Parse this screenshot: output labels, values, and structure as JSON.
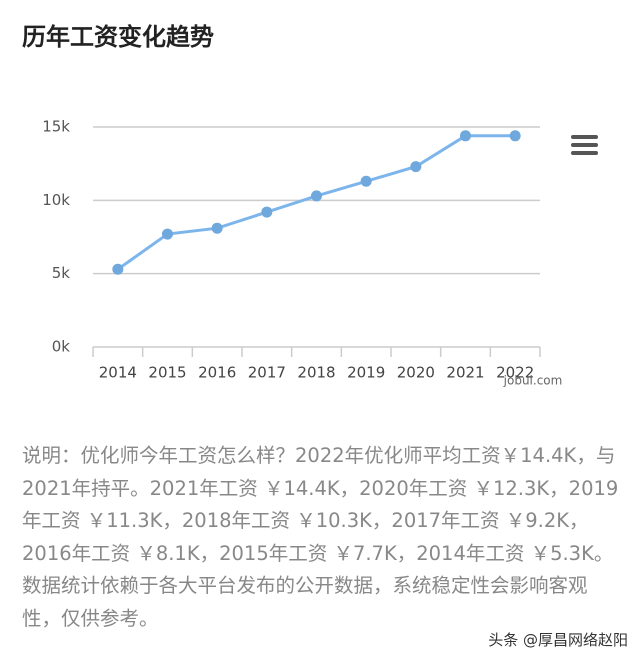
{
  "chart_data": {
    "type": "line",
    "title": "历年工资变化趋势",
    "categories": [
      "2014",
      "2015",
      "2016",
      "2017",
      "2018",
      "2019",
      "2020",
      "2021",
      "2022"
    ],
    "values": [
      5300,
      7700,
      8100,
      9200,
      10300,
      11300,
      12300,
      14400,
      14400
    ],
    "color": "#7cb5ec",
    "ylim": [
      0,
      15000
    ],
    "yticks": [
      {
        "value": 0,
        "label": "0k"
      },
      {
        "value": 5000,
        "label": "5k"
      },
      {
        "value": 10000,
        "label": "10k"
      },
      {
        "value": 15000,
        "label": "15k"
      }
    ],
    "grid": true,
    "watermark": "jobui.com"
  },
  "description": "说明：优化师今年工资怎么样？2022年优化师平均工资￥14.4K，与2021年持平。2021年工资 ￥14.4K，2020年工资 ￥12.3K，2019年工资 ￥11.3K，2018年工资 ￥10.3K，2017年工资 ￥9.2K，2016年工资 ￥8.1K，2015年工资 ￥7.7K，2014年工资 ￥5.3K。数据统计依赖于各大平台发布的公开数据，系统稳定性会影响客观性，仅供参考。",
  "footer": "头条 @厚昌网络赵阳"
}
